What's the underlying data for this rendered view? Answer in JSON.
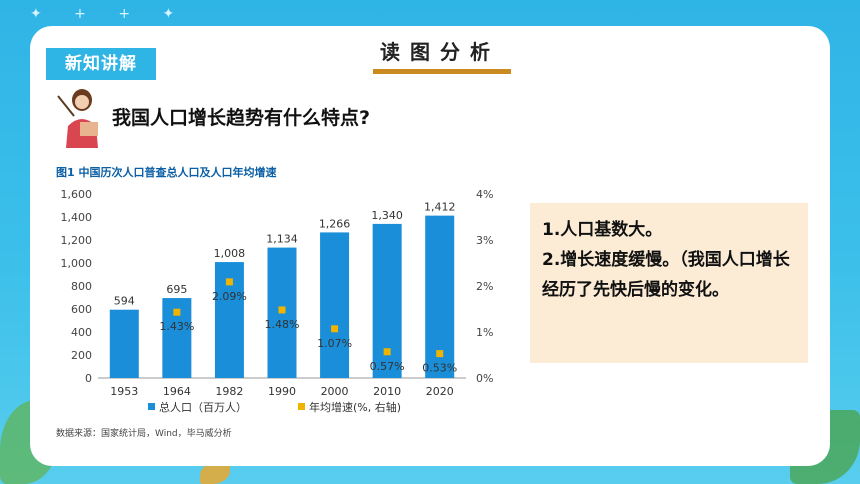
{
  "slide": {
    "tag": "新知讲解",
    "section_title": "读图分析",
    "question": "我国人口增长趋势有什么特点?",
    "chart_caption": "图1 中国历次人口普查总人口及人口年均增速",
    "source": "数据来源：国家统计局，Wind，毕马威分析",
    "answer": [
      "1.人口基数大。",
      "2.增长速度缓慢。（我国人口增长经历了先快后慢的变化。"
    ]
  },
  "colors": {
    "bar": "#1a8ed8",
    "marker": "#f0b400",
    "background": "#2fb4e6",
    "answer_bg": "#fcecd6",
    "accent": "#c98a21"
  },
  "chart_data": {
    "type": "bar",
    "categories": [
      "1953",
      "1964",
      "1982",
      "1990",
      "2000",
      "2010",
      "2020"
    ],
    "series": [
      {
        "name": "总人口（百万人）",
        "type": "bar",
        "axis": "left",
        "values": [
          594,
          695,
          1008,
          1134,
          1266,
          1340,
          1412
        ],
        "labels": [
          "594",
          "695",
          "1,008",
          "1,134",
          "1,266",
          "1,340",
          "1,412"
        ]
      },
      {
        "name": "年均增速(%, 右轴)",
        "type": "scatter",
        "axis": "right",
        "values": [
          null,
          1.43,
          2.09,
          1.48,
          1.07,
          0.57,
          0.53
        ],
        "labels": [
          "",
          "1.43%",
          "2.09%",
          "1.48%",
          "1.07%",
          "0.57%",
          "0.53%"
        ]
      }
    ],
    "ylim": [
      0,
      1600
    ],
    "yticks": [
      "0",
      "200",
      "400",
      "600",
      "800",
      "1,000",
      "1,200",
      "1,400",
      "1,600"
    ],
    "y2lim": [
      0,
      4
    ],
    "y2ticks": [
      "0%",
      "1%",
      "2%",
      "3%",
      "4%"
    ],
    "legend": "bottom"
  }
}
